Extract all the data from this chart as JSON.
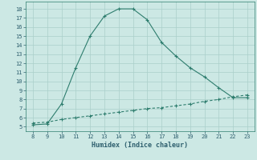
{
  "title": "",
  "xlabel": "Humidex (Indice chaleur)",
  "x_values": [
    8,
    9,
    10,
    11,
    12,
    13,
    14,
    15,
    16,
    17,
    18,
    19,
    20,
    21,
    22,
    23
  ],
  "y1_values": [
    5.2,
    5.3,
    7.5,
    11.5,
    15.0,
    17.2,
    18.0,
    18.0,
    16.8,
    14.3,
    12.8,
    11.5,
    10.5,
    9.3,
    8.2,
    8.2
  ],
  "y2_values": [
    5.4,
    5.5,
    5.8,
    6.0,
    6.2,
    6.4,
    6.6,
    6.8,
    7.0,
    7.1,
    7.3,
    7.5,
    7.8,
    8.0,
    8.3,
    8.5
  ],
  "line_color": "#2e7d6e",
  "bg_color": "#cce8e4",
  "grid_color": "#aacfca",
  "text_color": "#2e5f6e",
  "xlim": [
    7.5,
    23.5
  ],
  "ylim": [
    4.5,
    18.8
  ],
  "xticks": [
    8,
    9,
    10,
    11,
    12,
    13,
    14,
    15,
    16,
    17,
    18,
    19,
    20,
    21,
    22,
    23
  ],
  "yticks": [
    5,
    6,
    7,
    8,
    9,
    10,
    11,
    12,
    13,
    14,
    15,
    16,
    17,
    18
  ],
  "marker": "+"
}
